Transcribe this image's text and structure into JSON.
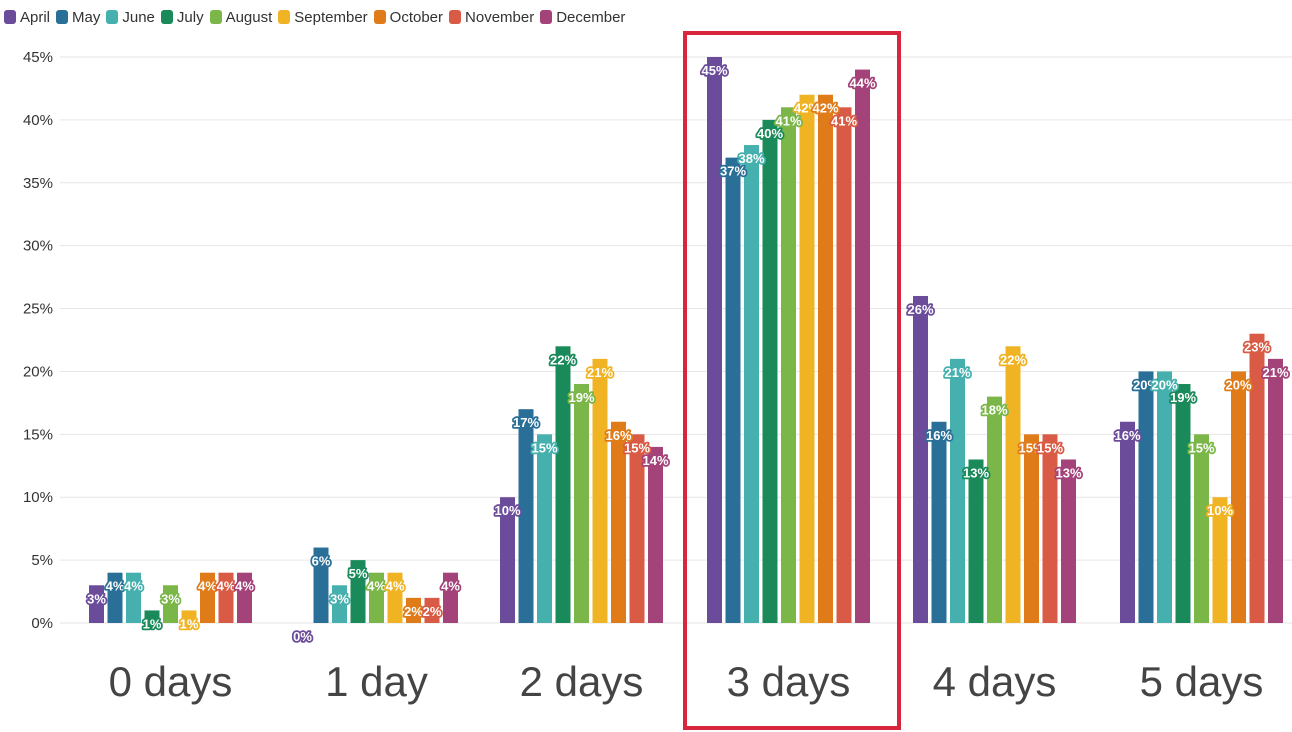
{
  "chart_data": {
    "type": "bar",
    "categories": [
      "0 days",
      "1 day",
      "2 days",
      "3 days",
      "4 days",
      "5 days"
    ],
    "series": [
      {
        "name": "April",
        "color": "#6b4c9a",
        "values": [
          3,
          0,
          10,
          45,
          26,
          16
        ]
      },
      {
        "name": "May",
        "color": "#2a6f97",
        "values": [
          4,
          6,
          17,
          37,
          16,
          20
        ]
      },
      {
        "name": "June",
        "color": "#45b0ad",
        "values": [
          4,
          3,
          15,
          38,
          21,
          20
        ]
      },
      {
        "name": "July",
        "color": "#1a8a5a",
        "values": [
          1,
          5,
          22,
          40,
          13,
          19
        ]
      },
      {
        "name": "August",
        "color": "#7ab648",
        "values": [
          3,
          4,
          19,
          41,
          18,
          15
        ]
      },
      {
        "name": "September",
        "color": "#f0b323",
        "values": [
          1,
          4,
          21,
          42,
          22,
          10
        ]
      },
      {
        "name": "October",
        "color": "#e07b1a",
        "values": [
          4,
          2,
          16,
          42,
          15,
          20
        ]
      },
      {
        "name": "November",
        "color": "#d95b45",
        "values": [
          4,
          2,
          15,
          41,
          15,
          23
        ]
      },
      {
        "name": "December",
        "color": "#a3437a",
        "values": [
          4,
          4,
          14,
          44,
          13,
          21
        ]
      }
    ],
    "data_labels": [
      [
        "3%",
        "4%",
        "4%",
        "1%",
        "3%",
        "1%",
        "4%",
        "4%",
        "4%"
      ],
      [
        "0%",
        "6%",
        "3%",
        "5%",
        "4%",
        "4%",
        "2%",
        "2%",
        "4%"
      ],
      [
        "10%",
        "17%",
        "15%",
        "22%",
        "19%",
        "21%",
        "16%",
        "15%",
        "14%"
      ],
      [
        "45%",
        "37%",
        "38%",
        "40%",
        "41%",
        "42%",
        "42%",
        "41%",
        "44%"
      ],
      [
        "26%",
        "16%",
        "21%",
        "13%",
        "18%",
        "22%",
        "15%",
        "15%",
        "13%"
      ],
      [
        "16%",
        "20%",
        "20%",
        "19%",
        "15%",
        "10%",
        "20%",
        "23%",
        "21%"
      ]
    ],
    "y_ticks": [
      "0%",
      "5%",
      "10%",
      "15%",
      "20%",
      "25%",
      "30%",
      "35%",
      "40%",
      "45%"
    ],
    "ylim": [
      0,
      45
    ],
    "grid": true,
    "legend_position": "top-left",
    "highlight": {
      "category": "3 days",
      "color": "#d7263d"
    }
  }
}
